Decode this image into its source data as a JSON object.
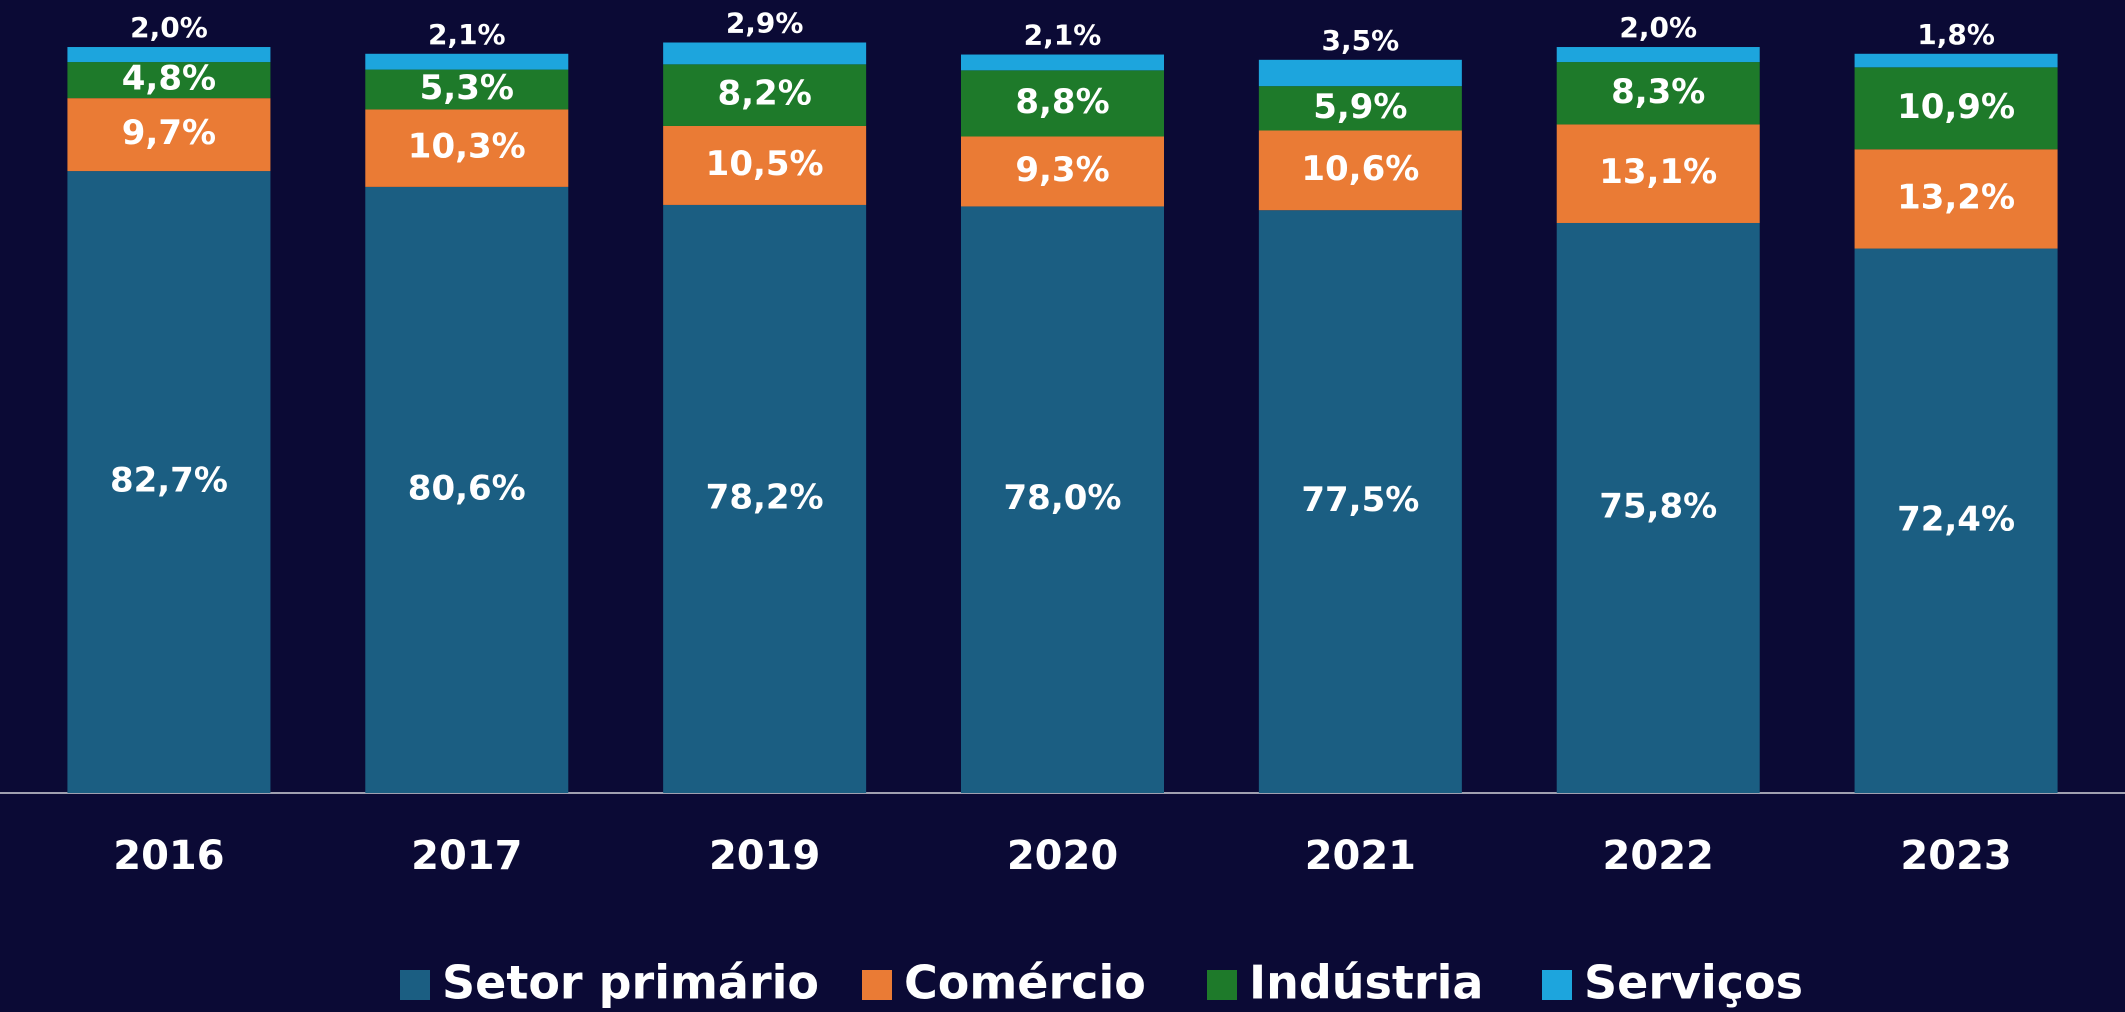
{
  "chart_data": {
    "type": "stacked_bar",
    "categories": [
      "2016",
      "2017",
      "2019",
      "2020",
      "2021",
      "2022",
      "2023"
    ],
    "series": [
      {
        "name": "Setor primário",
        "color": "#1b5e82",
        "values": [
          82.7,
          80.6,
          78.2,
          78.0,
          77.5,
          75.8,
          72.4
        ],
        "value_labels": [
          "82,7%",
          "80,6%",
          "78,2%",
          "78,0%",
          "77,5%",
          "75,8%",
          "72,4%"
        ]
      },
      {
        "name": "Comércio",
        "color": "#ea7b35",
        "values": [
          9.7,
          10.3,
          10.5,
          9.3,
          10.6,
          13.1,
          13.2
        ],
        "value_labels": [
          "9,7%",
          "10,3%",
          "10,5%",
          "9,3%",
          "10,6%",
          "13,1%",
          "13,2%"
        ]
      },
      {
        "name": "Indústria",
        "color": "#1e7a2a",
        "values": [
          4.8,
          5.3,
          8.2,
          8.8,
          5.9,
          8.3,
          10.9
        ],
        "value_labels": [
          "4,8%",
          "5,3%",
          "8,2%",
          "8,8%",
          "5,9%",
          "8,3%",
          "10,9%"
        ]
      },
      {
        "name": "Serviços",
        "color": "#1da5dd",
        "values": [
          2.0,
          2.1,
          2.9,
          2.1,
          3.5,
          2.0,
          1.8
        ],
        "value_labels": [
          "2,0%",
          "2,1%",
          "2,9%",
          "2,1%",
          "3,5%",
          "2,0%",
          "1,8%"
        ]
      }
    ],
    "ylim": [
      0,
      100
    ]
  }
}
